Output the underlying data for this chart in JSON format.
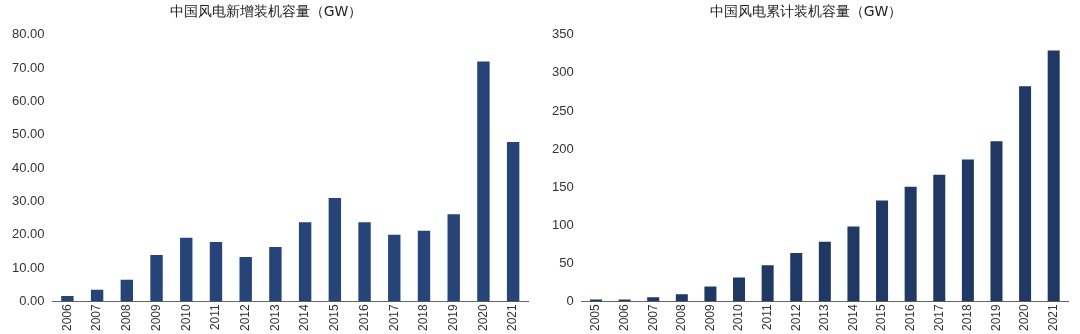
{
  "chart_data": [
    {
      "type": "bar",
      "title": "中国风电新增装机容量（GW）",
      "categories": [
        "2006",
        "2007",
        "2008",
        "2009",
        "2010",
        "2011",
        "2012",
        "2013",
        "2014",
        "2015",
        "2016",
        "2017",
        "2018",
        "2019",
        "2020",
        "2021"
      ],
      "values": [
        1.3,
        3.2,
        6.2,
        13.6,
        18.8,
        17.5,
        13.0,
        16.0,
        23.4,
        30.7,
        23.4,
        19.7,
        20.9,
        25.8,
        71.7,
        47.5
      ],
      "color": "#264478",
      "ylim": [
        0,
        80
      ],
      "yticks": [
        {
          "value": 0,
          "label": "0.00"
        },
        {
          "value": 10,
          "label": "10.00"
        },
        {
          "value": 20,
          "label": "20.00"
        },
        {
          "value": 30,
          "label": "30.00"
        },
        {
          "value": 40,
          "label": "40.00"
        },
        {
          "value": 50,
          "label": "50.00"
        },
        {
          "value": 60,
          "label": "60.00"
        },
        {
          "value": 70,
          "label": "70.00"
        },
        {
          "value": 80,
          "label": "80.00"
        }
      ],
      "grid": false,
      "legend": false
    },
    {
      "type": "bar",
      "title": "中国风电累计装机容量（GW）",
      "categories": [
        "2005",
        "2006",
        "2007",
        "2008",
        "2009",
        "2010",
        "2011",
        "2012",
        "2013",
        "2014",
        "2015",
        "2016",
        "2017",
        "2018",
        "2019",
        "2020",
        "2021"
      ],
      "values": [
        1,
        1,
        4,
        8,
        18,
        30,
        46,
        62,
        77,
        97,
        131,
        149,
        165,
        185,
        209,
        281,
        328
      ],
      "color": "#1f3864",
      "ylim": [
        0,
        350
      ],
      "yticks": [
        0,
        50,
        100,
        150,
        200,
        250,
        300,
        350
      ],
      "grid": false,
      "legend": false
    }
  ]
}
